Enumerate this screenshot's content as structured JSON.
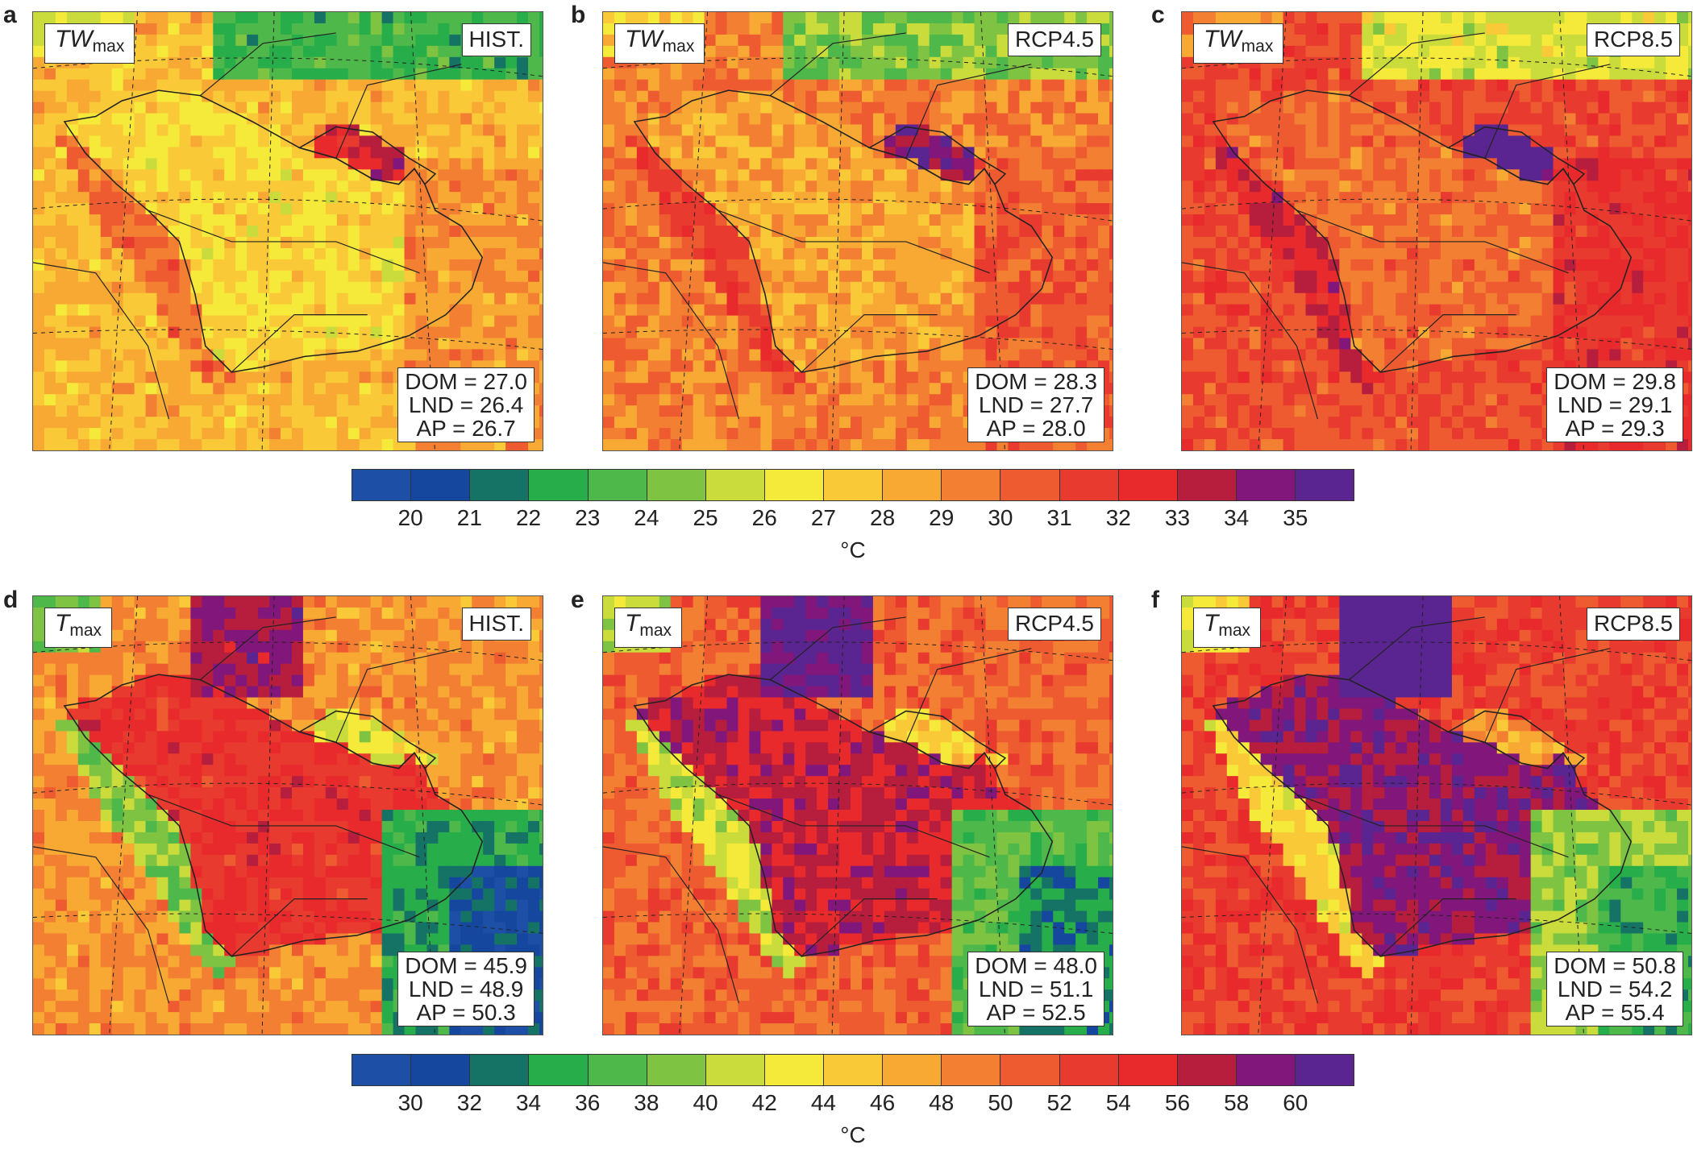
{
  "colorbars": [
    {
      "colors": [
        "#1d4fa6",
        "#16479e",
        "#157365",
        "#28ad4b",
        "#4eb94a",
        "#7fc342",
        "#c9dc3c",
        "#f5ea3a",
        "#fac938",
        "#f7a934",
        "#f37f32",
        "#ef5b30",
        "#e83a2e",
        "#e82a2c",
        "#b71d3d",
        "#82177b",
        "#5a2591"
      ],
      "ticks_top": [
        "20",
        "21",
        "22",
        "23",
        "24",
        "25",
        "26",
        "27",
        "28",
        "29",
        "30",
        "31",
        "32",
        "33",
        "34",
        "35"
      ],
      "ticks_bottom": [
        "30",
        "32",
        "34",
        "36",
        "38",
        "40",
        "42",
        "44",
        "46",
        "48",
        "50",
        "52",
        "54",
        "56",
        "58",
        "60"
      ],
      "unit": "°C"
    }
  ],
  "panels": [
    {
      "letter": "a",
      "var_main": "TW",
      "var_sub": "max",
      "scenario": "HIST.",
      "dom": "DOM = 27.0",
      "lnd": "LND = 26.4",
      "ap": "AP = 26.7",
      "palette": "tw",
      "level": 0
    },
    {
      "letter": "b",
      "var_main": "TW",
      "var_sub": "max",
      "scenario": "RCP4.5",
      "dom": "DOM = 28.3",
      "lnd": "LND = 27.7",
      "ap": "AP = 28.0",
      "palette": "tw",
      "level": 1
    },
    {
      "letter": "c",
      "var_main": "TW",
      "var_sub": "max",
      "scenario": "RCP8.5",
      "dom": "DOM = 29.8",
      "lnd": "LND = 29.1",
      "ap": "AP = 29.3",
      "palette": "tw",
      "level": 2
    },
    {
      "letter": "d",
      "var_main": "T",
      "var_sub": "max",
      "scenario": "HIST.",
      "dom": "DOM = 45.9",
      "lnd": "LND = 48.9",
      "ap": "AP = 50.3",
      "palette": "t",
      "level": 0
    },
    {
      "letter": "e",
      "var_main": "T",
      "var_sub": "max",
      "scenario": "RCP4.5",
      "dom": "DOM = 48.0",
      "lnd": "LND = 51.1",
      "ap": "AP = 52.5",
      "palette": "t",
      "level": 1
    },
    {
      "letter": "f",
      "var_main": "T",
      "var_sub": "max",
      "scenario": "RCP8.5",
      "dom": "DOM = 50.8",
      "lnd": "LND = 54.2",
      "ap": "AP = 55.4",
      "palette": "t",
      "level": 2
    }
  ]
}
